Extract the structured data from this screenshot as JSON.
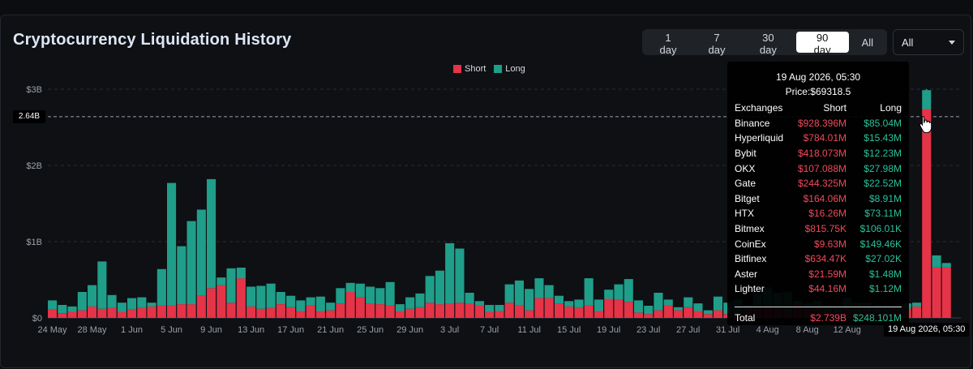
{
  "title": "Cryptocurrency Liquidation History",
  "range_buttons": [
    "1 day",
    "7 day",
    "30 day",
    "90 day",
    "All"
  ],
  "range_active": "90 day",
  "exchange_select": "All",
  "colors": {
    "short": "#e53347",
    "long": "#1f9e89",
    "bg": "#0e1014"
  },
  "chart_data": {
    "type": "bar",
    "stacked": true,
    "legend": [
      "Short",
      "Long"
    ],
    "legend_position": "top-center",
    "y_ticks": [
      "$0",
      "$1B",
      "$2B",
      "$3B"
    ],
    "ylim": [
      0,
      3.0
    ],
    "unit": "B",
    "x_tick_labels": [
      "24 May",
      "28 May",
      "1 Jun",
      "5 Jun",
      "9 Jun",
      "13 Jun",
      "17 Jun",
      "21 Jun",
      "25 Jun",
      "29 Jun",
      "3 Jul",
      "7 Jul",
      "11 Jul",
      "15 Jul",
      "19 Jul",
      "23 Jul",
      "27 Jul",
      "31 Jul",
      "4 Aug",
      "8 Aug",
      "12 Aug"
    ],
    "reference_line": {
      "label": "2.64B",
      "value": 2.64
    },
    "series": [
      {
        "name": "Short",
        "values": [
          0.11,
          0.06,
          0.08,
          0.1,
          0.15,
          0.12,
          0.13,
          0.08,
          0.11,
          0.13,
          0.15,
          0.16,
          0.16,
          0.18,
          0.18,
          0.29,
          0.39,
          0.43,
          0.2,
          0.52,
          0.15,
          0.12,
          0.13,
          0.18,
          0.14,
          0.09,
          0.16,
          0.09,
          0.1,
          0.19,
          0.34,
          0.27,
          0.19,
          0.18,
          0.16,
          0.09,
          0.12,
          0.14,
          0.2,
          0.18,
          0.19,
          0.2,
          0.19,
          0.16,
          0.08,
          0.09,
          0.2,
          0.17,
          0.1,
          0.26,
          0.26,
          0.19,
          0.15,
          0.13,
          0.16,
          0.09,
          0.25,
          0.24,
          0.21,
          0.07,
          0.05,
          0.1,
          0.17,
          0.1,
          0.14,
          0.09,
          0.05,
          0.1,
          0.05,
          0.06,
          0.09,
          0.12,
          0.16,
          0.13,
          0.07,
          0.18,
          0.12,
          0.1,
          0.08,
          0.07,
          0.1,
          0.08,
          0.09,
          0.07,
          0.09,
          0.1,
          0.12,
          0.15,
          2.739,
          0.66,
          0.66
        ]
      },
      {
        "name": "Long",
        "values": [
          0.12,
          0.11,
          0.07,
          0.24,
          0.28,
          0.62,
          0.17,
          0.12,
          0.15,
          0.14,
          0.05,
          0.48,
          1.61,
          0.76,
          1.09,
          1.13,
          1.43,
          0.1,
          0.45,
          0.14,
          0.26,
          0.3,
          0.32,
          0.16,
          0.15,
          0.14,
          0.11,
          0.19,
          0.1,
          0.2,
          0.12,
          0.18,
          0.22,
          0.21,
          0.31,
          0.09,
          0.15,
          0.18,
          0.35,
          0.44,
          0.79,
          0.71,
          0.14,
          0.06,
          0.09,
          0.08,
          0.24,
          0.32,
          0.28,
          0.26,
          0.17,
          0.1,
          0.07,
          0.11,
          0.36,
          0.15,
          0.12,
          0.2,
          0.3,
          0.16,
          0.11,
          0.23,
          0.07,
          0.04,
          0.13,
          0.1,
          0.05,
          0.18,
          0.15,
          0.18,
          0.08,
          0.2,
          0.24,
          0.2,
          0.27,
          0.04,
          0.07,
          0.12,
          0.08,
          0.08,
          0.16,
          0.12,
          0.11,
          0.1,
          0.08,
          0.06,
          0.07,
          0.05,
          0.248,
          0.16,
          0.06
        ]
      }
    ]
  },
  "tooltip": {
    "date": "19 Aug 2026, 05:30",
    "price": "Price:$69318.5",
    "headers": [
      "Exchanges",
      "Short",
      "Long"
    ],
    "rows": [
      [
        "Binance",
        "$928.396M",
        "$85.04M"
      ],
      [
        "Hyperliquid",
        "$784.01M",
        "$15.43M"
      ],
      [
        "Bybit",
        "$418.073M",
        "$12.23M"
      ],
      [
        "OKX",
        "$107.088M",
        "$27.98M"
      ],
      [
        "Gate",
        "$244.325M",
        "$22.52M"
      ],
      [
        "Bitget",
        "$164.06M",
        "$8.91M"
      ],
      [
        "HTX",
        "$16.26M",
        "$73.11M"
      ],
      [
        "Bitmex",
        "$815.75K",
        "$106.01K"
      ],
      [
        "CoinEx",
        "$9.63M",
        "$149.46K"
      ],
      [
        "Bitfinex",
        "$634.47K",
        "$27.02K"
      ],
      [
        "Aster",
        "$21.59M",
        "$1.48M"
      ],
      [
        "Lighter",
        "$44.16M",
        "$1.12M"
      ]
    ],
    "total": [
      "Total",
      "$2.739B",
      "$248.101M"
    ]
  },
  "cursor_date_tag": "19 Aug 2026, 05:30"
}
